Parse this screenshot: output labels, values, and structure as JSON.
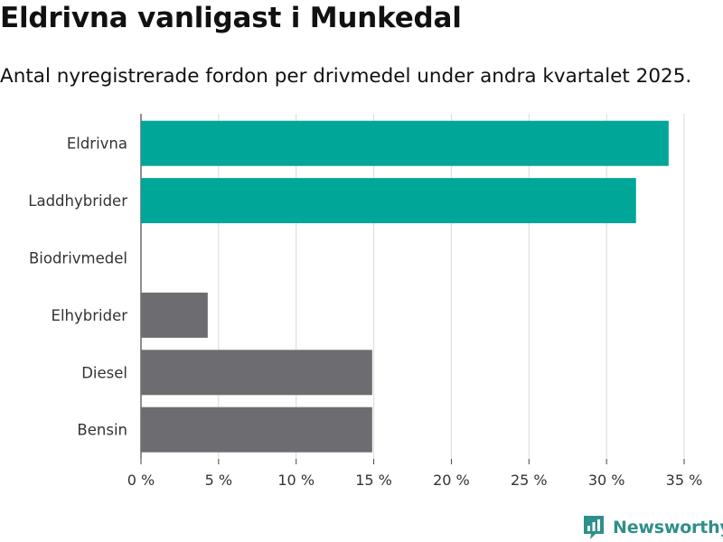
{
  "title": "Eldrivna vanligast i Munkedal",
  "subtitle": "Antal nyregistrerade fordon per drivmedel under andra kvartalet 2025.",
  "brand": "Newsworthy",
  "colors": {
    "highlight": "#00a698",
    "other": "#6d6c71",
    "grid": "#d9d9d9",
    "brand": "#2f8f8a"
  },
  "chart_data": {
    "type": "bar",
    "orientation": "horizontal",
    "categories": [
      "Eldrivna",
      "Laddhybrider",
      "Biodrivmedel",
      "Elhybrider",
      "Diesel",
      "Bensin"
    ],
    "values": [
      34.0,
      31.9,
      0,
      4.3,
      14.9,
      14.9
    ],
    "highlighted": [
      true,
      true,
      false,
      false,
      false,
      false
    ],
    "xlim": [
      0,
      35
    ],
    "xticks": [
      0,
      5,
      10,
      15,
      20,
      25,
      30,
      35
    ],
    "xtick_labels": [
      "0 %",
      "5 %",
      "10 %",
      "15 %",
      "20 %",
      "25 %",
      "30 %",
      "35 %"
    ],
    "grid": true,
    "xlabel": "",
    "ylabel": ""
  }
}
